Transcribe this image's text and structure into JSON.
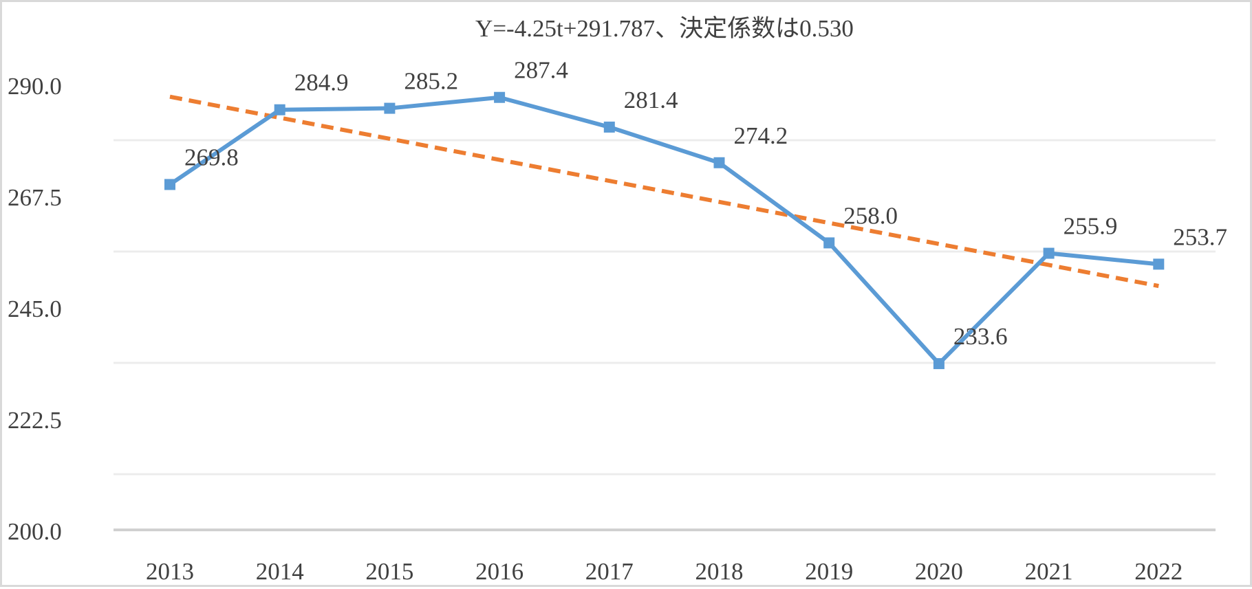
{
  "chart_data": {
    "type": "line",
    "title": "Y=-4.25t+291.787、決定係数は0.530",
    "categories": [
      "2013",
      "2014",
      "2015",
      "2016",
      "2017",
      "2018",
      "2019",
      "2020",
      "2021",
      "2022"
    ],
    "series": [
      {
        "values": [
          269.8,
          284.9,
          285.2,
          287.4,
          281.4,
          274.2,
          258.0,
          233.6,
          255.9,
          253.7
        ],
        "labels": [
          "269.8",
          "284.9",
          "285.2",
          "287.4",
          "281.4",
          "274.2",
          "258.0",
          "233.6",
          "255.9",
          "253.7"
        ],
        "color": "#5b9bd5",
        "marker": "square"
      }
    ],
    "trendline": {
      "type": "linear",
      "slope": -4.25,
      "intercept": 291.787,
      "color": "#ed7d31",
      "style": "dashed"
    },
    "ylim": [
      200,
      290
    ],
    "yticks": [
      "200.0",
      "222.5",
      "245.0",
      "267.5",
      "290.0"
    ],
    "gridlines": [
      211.25,
      233.75,
      256.25,
      278.75
    ],
    "grid": true,
    "legend": "none"
  }
}
